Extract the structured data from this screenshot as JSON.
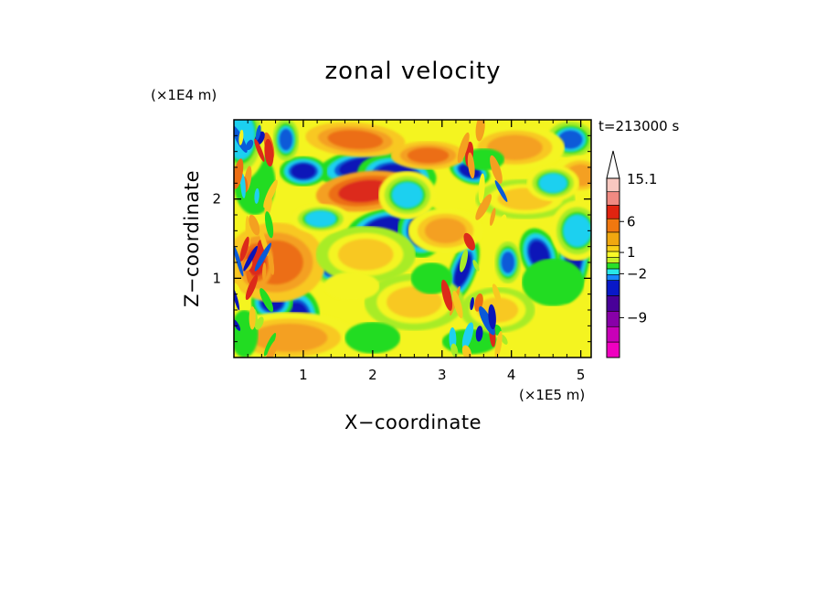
{
  "chart_data": {
    "type": "heatmap",
    "title": "zonal velocity",
    "xlabel": "X−coordinate",
    "ylabel": "Z−coordinate",
    "x_unit": "(×1E5 m)",
    "y_unit": "(×1E4 m)",
    "time_label": "t=213000 s",
    "xlim": [
      0,
      5.15
    ],
    "ylim": [
      0,
      3.0
    ],
    "x_ticks": [
      1,
      2,
      3,
      4,
      5
    ],
    "x_tick_labels": [
      "1",
      "2",
      "3",
      "4",
      "5"
    ],
    "y_ticks": [
      1,
      2
    ],
    "y_tick_labels": [
      "1",
      "2"
    ],
    "colorbar": {
      "max_label": "15.1",
      "labels": [
        {
          "value": 6,
          "text": "6"
        },
        {
          "value": 1,
          "text": "1"
        },
        {
          "value": -2,
          "text": "−2"
        },
        {
          "value": -9,
          "text": "−9"
        }
      ],
      "colors_top_to_bottom": [
        "#f8c8c0",
        "#f08a82",
        "#e02410",
        "#f07810",
        "#f0a810",
        "#f8d018",
        "#f8f828",
        "#c8f028",
        "#28e028",
        "#28e8e8",
        "#1888ff",
        "#0818c8",
        "#480098",
        "#8800a8",
        "#c800b8",
        "#f000c0"
      ]
    },
    "field_palette": [
      "#0a14b8",
      "#0a5ad8",
      "#1fd0f0",
      "#22dc22",
      "#a8ec28",
      "#f4f420",
      "#f8c820",
      "#f4a020",
      "#ec6e14",
      "#dc2a1a"
    ]
  }
}
